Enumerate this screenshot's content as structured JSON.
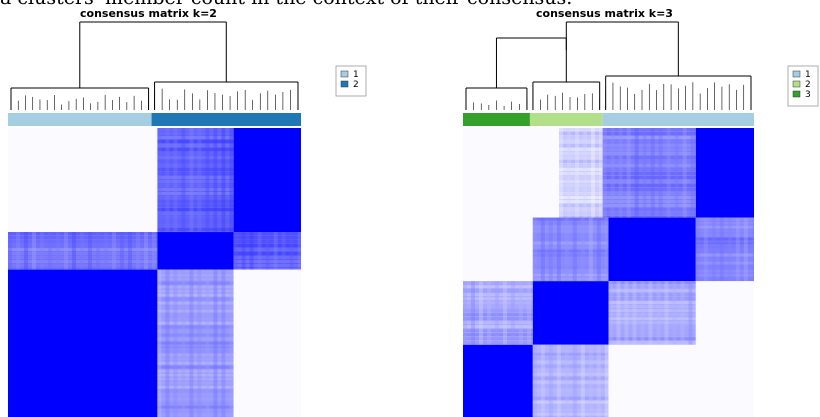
{
  "caption": "a clusters' member count in the context of their consensus.",
  "chart_data": [
    {
      "type": "heatmap",
      "title": "consensus matrix k=2",
      "row_order_groups": [
        {
          "cluster": "1",
          "fraction": 0.49
        },
        {
          "cluster": "2",
          "fraction": 0.51
        }
      ],
      "blocks": [
        {
          "rows": [
            0.0,
            0.36
          ],
          "cols": [
            0.0,
            0.51
          ],
          "level": 0.02
        },
        {
          "rows": [
            0.0,
            0.36
          ],
          "cols": [
            0.51,
            0.77
          ],
          "level": 0.62
        },
        {
          "rows": [
            0.0,
            0.36
          ],
          "cols": [
            0.77,
            1.0
          ],
          "level": 1.0
        },
        {
          "rows": [
            0.36,
            0.49
          ],
          "cols": [
            0.0,
            0.51
          ],
          "level": 0.55
        },
        {
          "rows": [
            0.36,
            0.49
          ],
          "cols": [
            0.51,
            0.77
          ],
          "level": 1.0
        },
        {
          "rows": [
            0.36,
            0.49
          ],
          "cols": [
            0.77,
            1.0
          ],
          "level": 0.65
        },
        {
          "rows": [
            0.49,
            1.0
          ],
          "cols": [
            0.0,
            0.51
          ],
          "level": 1.0
        },
        {
          "rows": [
            0.49,
            1.0
          ],
          "cols": [
            0.51,
            0.77
          ],
          "level": 0.4
        },
        {
          "rows": [
            0.49,
            1.0
          ],
          "cols": [
            0.77,
            1.0
          ],
          "level": 0.02
        }
      ],
      "legend": [
        {
          "label": "1",
          "color": "#a6cee3"
        },
        {
          "label": "2",
          "color": "#1f78b4"
        }
      ]
    },
    {
      "type": "heatmap",
      "title": "consensus matrix k=3",
      "row_order_groups": [
        {
          "cluster": "3",
          "fraction": 0.23
        },
        {
          "cluster": "2",
          "fraction": 0.25
        },
        {
          "cluster": "1",
          "fraction": 0.52
        }
      ],
      "blocks": [
        {
          "rows": [
            0.0,
            0.31
          ],
          "cols": [
            0.0,
            0.33
          ],
          "level": 0.02
        },
        {
          "rows": [
            0.0,
            0.31
          ],
          "cols": [
            0.33,
            0.48
          ],
          "level": 0.2
        },
        {
          "rows": [
            0.0,
            0.31
          ],
          "cols": [
            0.48,
            0.8
          ],
          "level": 0.5
        },
        {
          "rows": [
            0.0,
            0.31
          ],
          "cols": [
            0.8,
            1.0
          ],
          "level": 1.0
        },
        {
          "rows": [
            0.31,
            0.53
          ],
          "cols": [
            0.0,
            0.24
          ],
          "level": 0.02
        },
        {
          "rows": [
            0.31,
            0.53
          ],
          "cols": [
            0.24,
            0.5
          ],
          "level": 0.45
        },
        {
          "rows": [
            0.31,
            0.53
          ],
          "cols": [
            0.5,
            0.8
          ],
          "level": 1.0
        },
        {
          "rows": [
            0.31,
            0.53
          ],
          "cols": [
            0.8,
            1.0
          ],
          "level": 0.5
        },
        {
          "rows": [
            0.53,
            0.75
          ],
          "cols": [
            0.0,
            0.24
          ],
          "level": 0.35
        },
        {
          "rows": [
            0.53,
            0.75
          ],
          "cols": [
            0.24,
            0.5
          ],
          "level": 1.0
        },
        {
          "rows": [
            0.53,
            0.75
          ],
          "cols": [
            0.5,
            0.8
          ],
          "level": 0.35
        },
        {
          "rows": [
            0.53,
            0.75
          ],
          "cols": [
            0.8,
            1.0
          ],
          "level": 0.02
        },
        {
          "rows": [
            0.75,
            1.0
          ],
          "cols": [
            0.0,
            0.24
          ],
          "level": 1.0
        },
        {
          "rows": [
            0.75,
            1.0
          ],
          "cols": [
            0.24,
            0.5
          ],
          "level": 0.3
        },
        {
          "rows": [
            0.75,
            1.0
          ],
          "cols": [
            0.5,
            1.0
          ],
          "level": 0.02
        }
      ],
      "legend": [
        {
          "label": "1",
          "color": "#a6cee3"
        },
        {
          "label": "2",
          "color": "#b2df8a"
        },
        {
          "label": "3",
          "color": "#33a02c"
        }
      ]
    }
  ],
  "colors": {
    "high": "#0000ff",
    "low": "#ffffff",
    "dendrogram": "#000000"
  }
}
